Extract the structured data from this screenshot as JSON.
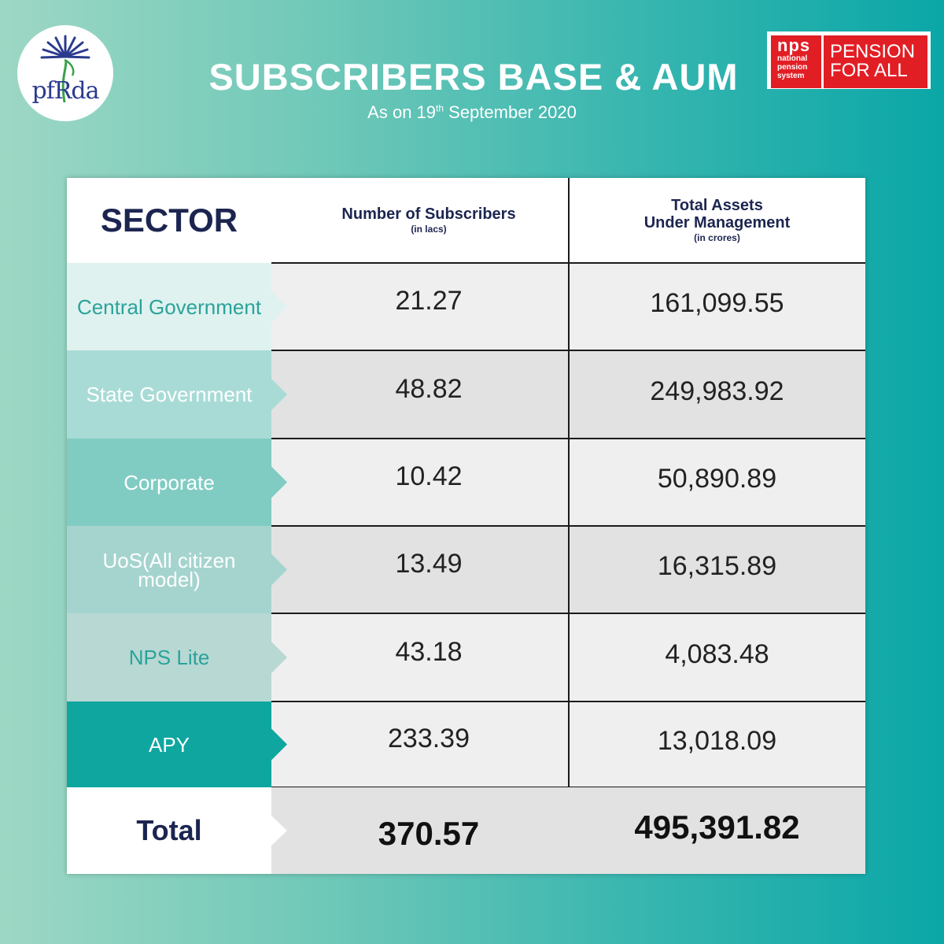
{
  "header": {
    "title": "SUBSCRIBERS BASE & AUM",
    "subtitle_prefix": "As on 19",
    "subtitle_sup": "th",
    "subtitle_suffix": " September 2020"
  },
  "logos": {
    "pfrda_text": "pfRda",
    "nps_big": "nps",
    "nps_line1": "national",
    "nps_line2": "pension",
    "nps_line3": "system",
    "nps_tag1": "PENSION",
    "nps_tag2": "FOR ALL"
  },
  "table": {
    "col_sector": "SECTOR",
    "col_subs": "Number of Subscribers",
    "col_subs_unit": "(in lacs)",
    "col_aum_line1": "Total Assets",
    "col_aum_line2": "Under Management",
    "col_aum_unit": "(in crores)",
    "rows": [
      {
        "sector": "Central Government",
        "subscribers": "21.27",
        "aum": "161,099.55",
        "bg": "#dff2ef",
        "fg": "#2aa39a",
        "valbg": "#efefef"
      },
      {
        "sector": "State Government",
        "subscribers": "48.82",
        "aum": "249,983.92",
        "bg": "#a8dbd6",
        "fg": "#ffffff",
        "valbg": "#e2e2e2"
      },
      {
        "sector": "Corporate",
        "subscribers": "10.42",
        "aum": "50,890.89",
        "bg": "#80ccc3",
        "fg": "#ffffff",
        "valbg": "#efefef"
      },
      {
        "sector": "UoS(All citizen model)",
        "subscribers": "13.49",
        "aum": "16,315.89",
        "bg": "#a5d4cf",
        "fg": "#ffffff",
        "valbg": "#e2e2e2"
      },
      {
        "sector": "NPS Lite",
        "subscribers": "43.18",
        "aum": "4,083.48",
        "bg": "#b8d8d4",
        "fg": "#2aa39a",
        "valbg": "#efefef"
      },
      {
        "sector": "APY",
        "subscribers": "233.39",
        "aum": "13,018.09",
        "bg": "#0fa6a0",
        "fg": "#ffffff",
        "valbg": "#efefef"
      }
    ],
    "total_label": "Total",
    "total_subscribers": "370.57",
    "total_aum": "495,391.82"
  }
}
